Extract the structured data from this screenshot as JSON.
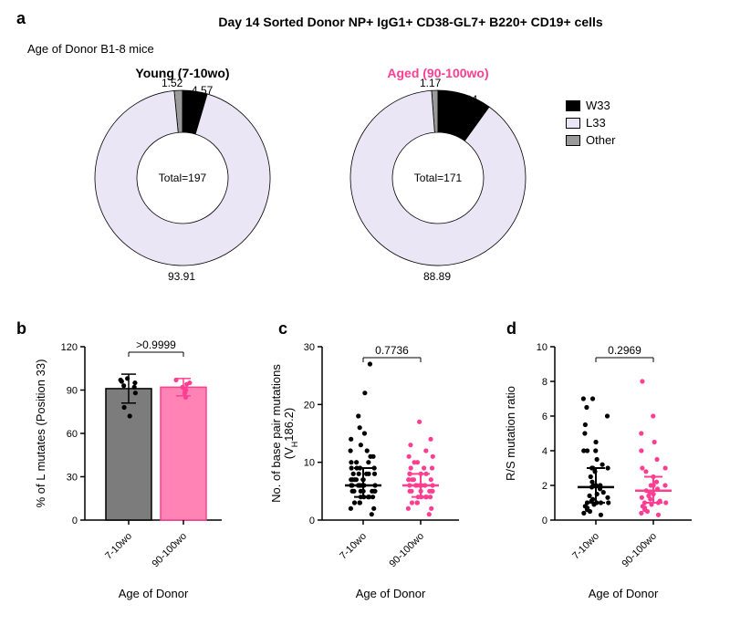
{
  "figure": {
    "panel_a_letter": "a",
    "panel_b_letter": "b",
    "panel_c_letter": "c",
    "panel_d_letter": "d",
    "main_title": "Day 14 Sorted Donor NP+ IgG1+ CD38-GL7+ B220+ CD19+ cells",
    "subtitle": "Age of Donor B1-8 mice"
  },
  "donut_young": {
    "title": "Young (7-10wo)",
    "title_color": "#000000",
    "total_label": "Total=197",
    "segments": {
      "W33": {
        "value": 4.57,
        "color": "#000000",
        "label": "4.57"
      },
      "Other": {
        "value": 1.52,
        "color": "#9a9a9a",
        "label": "1.52"
      },
      "L33": {
        "value": 93.91,
        "color": "#ebe6f5",
        "label": "93.91"
      }
    },
    "start_angle_deg": -90
  },
  "donut_aged": {
    "title": "Aged (90-100wo)",
    "title_color": "#ff3e91",
    "total_label": "Total=171",
    "segments": {
      "W33": {
        "value": 9.94,
        "color": "#000000",
        "label": "9.94"
      },
      "Other": {
        "value": 1.17,
        "color": "#9a9a9a",
        "label": "1.17"
      },
      "L33": {
        "value": 88.89,
        "color": "#ebe6f5",
        "label": "88.89"
      }
    },
    "start_angle_deg": -90
  },
  "legend": {
    "items": [
      {
        "label": "W33",
        "color": "#000000"
      },
      {
        "label": "L33",
        "color": "#ebe6f5"
      },
      {
        "label": "Other",
        "color": "#9a9a9a"
      }
    ]
  },
  "panel_b": {
    "ylabel": "% of L mutates (Position 33)",
    "xlabel": "Age of Donor",
    "pvalue": ">0.9999",
    "ylim": [
      0,
      120
    ],
    "yticks": [
      0,
      30,
      60,
      90,
      120
    ],
    "groups": [
      {
        "label": "7-10wo",
        "fill": "#7c7c7c",
        "stroke": "#000000",
        "mean": 91,
        "sd": 10,
        "points": [
          95,
          92,
          78,
          72,
          88,
          93,
          97,
          98,
          96
        ]
      },
      {
        "label": "90-100wo",
        "fill": "#ff83b5",
        "stroke": "#ff3e91",
        "mean": 92,
        "sd": 6,
        "points": [
          95,
          90,
          88,
          94,
          92,
          97,
          85
        ]
      }
    ]
  },
  "panel_c": {
    "ylabel": "No. of base pair mutations (Vₕ186.2)",
    "ylabel_display": "No. of base pair mutations\n(V_H186.2)",
    "xlabel": "Age of Donor",
    "pvalue": "0.7736",
    "ylim": [
      0,
      30
    ],
    "yticks": [
      0,
      10,
      20,
      30
    ],
    "groups": [
      {
        "label": "7-10wo",
        "color": "#000000",
        "median": 6,
        "q1": 4,
        "q3": 9,
        "points": [
          1,
          2,
          2,
          3,
          3,
          3,
          4,
          4,
          4,
          4,
          4,
          5,
          5,
          5,
          5,
          5,
          5,
          5,
          6,
          6,
          6,
          6,
          6,
          6,
          6,
          6,
          7,
          7,
          7,
          7,
          7,
          7,
          8,
          8,
          8,
          8,
          8,
          9,
          9,
          9,
          9,
          10,
          10,
          10,
          11,
          11,
          12,
          12,
          13,
          14,
          15,
          16,
          18,
          22,
          27
        ]
      },
      {
        "label": "90-100wo",
        "color": "#ff3e91",
        "median": 6,
        "q1": 4,
        "q3": 8,
        "points": [
          1,
          2,
          2,
          3,
          3,
          3,
          4,
          4,
          4,
          4,
          4,
          5,
          5,
          5,
          5,
          5,
          5,
          6,
          6,
          6,
          6,
          6,
          6,
          6,
          7,
          7,
          7,
          7,
          7,
          8,
          8,
          8,
          8,
          9,
          9,
          9,
          10,
          10,
          11,
          11,
          12,
          13,
          14,
          17
        ]
      }
    ]
  },
  "panel_d": {
    "ylabel": "R/S mutation ratio",
    "xlabel": "Age of Donor",
    "pvalue": "0.2969",
    "ylim": [
      0,
      10
    ],
    "yticks": [
      0,
      2,
      4,
      6,
      8,
      10
    ],
    "groups": [
      {
        "label": "7-10wo",
        "color": "#000000",
        "median": 1.9,
        "q1": 1.0,
        "q3": 3.0,
        "points": [
          0.3,
          0.4,
          0.5,
          0.6,
          0.7,
          0.8,
          0.9,
          1,
          1,
          1,
          1,
          1.1,
          1.2,
          1.3,
          1.4,
          1.5,
          1.6,
          1.8,
          1.9,
          2,
          2,
          2,
          2.2,
          2.5,
          2.8,
          3,
          3,
          3,
          3.2,
          3.5,
          4,
          4,
          4,
          4.5,
          5,
          5.5,
          6,
          6.5,
          7,
          7
        ]
      },
      {
        "label": "90-100wo",
        "color": "#ff3e91",
        "median": 1.7,
        "q1": 1.0,
        "q3": 2.5,
        "points": [
          0.3,
          0.4,
          0.5,
          0.6,
          0.7,
          0.8,
          0.9,
          1,
          1,
          1,
          1.1,
          1.2,
          1.3,
          1.4,
          1.5,
          1.6,
          1.7,
          1.8,
          2,
          2,
          2,
          2.2,
          2.5,
          2.8,
          3,
          3,
          3.5,
          4,
          4.5,
          5,
          6,
          8
        ]
      }
    ]
  },
  "axis_style": {
    "tick_fontsize": 11,
    "label_fontsize": 13,
    "axis_stroke": "#000000",
    "axis_width": 1.5
  }
}
